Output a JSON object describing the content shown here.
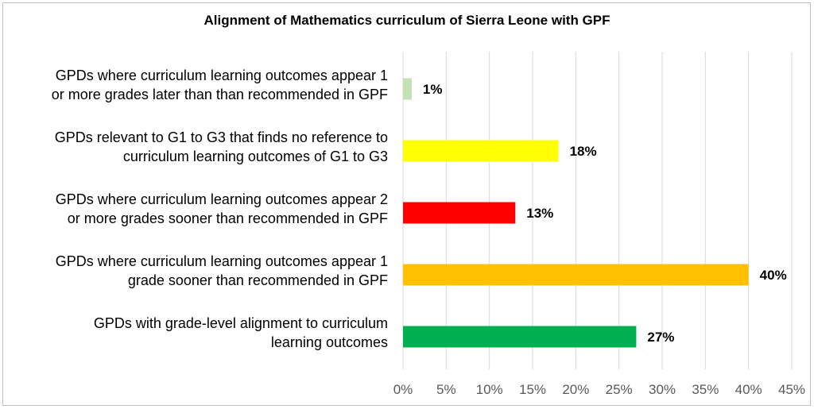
{
  "chart_data": {
    "type": "bar",
    "orientation": "horizontal",
    "title": "Alignment of Mathematics curriculum of Sierra Leone with GPF",
    "categories": [
      [
        "GPDs where curriculum learning outcomes appear 1",
        "or more grades later than than recommended in GPF"
      ],
      [
        "GPDs relevant to G1 to G3 that finds no reference to",
        "curriculum learning outcomes of G1 to G3"
      ],
      [
        "GPDs where curriculum learning outcomes appear 2",
        "or more grades sooner than recommended in GPF"
      ],
      [
        "GPDs where curriculum learning outcomes appear 1",
        "grade sooner than recommended in GPF"
      ],
      [
        "GPDs with grade-level alignment to curriculum",
        "learning outcomes"
      ]
    ],
    "values": [
      1,
      18,
      13,
      40,
      27
    ],
    "value_labels": [
      "1%",
      "18%",
      "13%",
      "40%",
      "27%"
    ],
    "colors": [
      "#c5e0b4",
      "#ffff00",
      "#ff0000",
      "#ffc000",
      "#00b050"
    ],
    "xlim": [
      0,
      45
    ],
    "xticks": [
      0,
      5,
      10,
      15,
      20,
      25,
      30,
      35,
      40,
      45
    ],
    "xtick_labels": [
      "0%",
      "5%",
      "10%",
      "15%",
      "20%",
      "25%",
      "30%",
      "35%",
      "40%",
      "45%"
    ],
    "grid": "vertical",
    "legend": "none"
  }
}
